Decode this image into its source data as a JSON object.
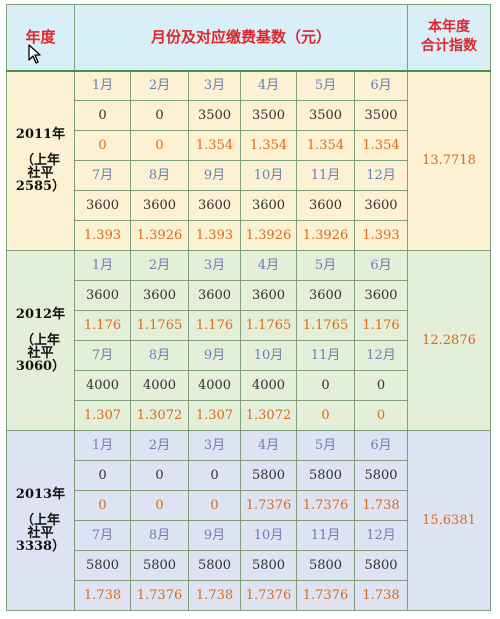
{
  "header": {
    "year_label": "年度",
    "middle_label": "月份及对应缴费基数（元）",
    "total_label_line1": "本年度",
    "total_label_line2": "合计指数"
  },
  "groups": [
    {
      "year": "2011年",
      "note_l1": "（上年",
      "note_l2": "社平",
      "note_l3": "2585）",
      "total": "13.7718",
      "rows": [
        {
          "kind": "month",
          "cells": [
            "1月",
            "2月",
            "3月",
            "4月",
            "5月",
            "6月"
          ]
        },
        {
          "kind": "base",
          "cells": [
            "0",
            "0",
            "3500",
            "3500",
            "3500",
            "3500"
          ]
        },
        {
          "kind": "idx",
          "cells": [
            "0",
            "0",
            "1.354",
            "1.354",
            "1.354",
            "1.354"
          ]
        },
        {
          "kind": "month",
          "cells": [
            "7月",
            "8月",
            "9月",
            "10月",
            "11月",
            "12月"
          ]
        },
        {
          "kind": "base",
          "cells": [
            "3600",
            "3600",
            "3600",
            "3600",
            "3600",
            "3600"
          ]
        },
        {
          "kind": "idx",
          "cells": [
            "1.393",
            "1.3926",
            "1.393",
            "1.3926",
            "1.3926",
            "1.393"
          ]
        }
      ]
    },
    {
      "year": "2012年",
      "note_l1": "（上年",
      "note_l2": "社平",
      "note_l3": "3060）",
      "total": "12.2876",
      "rows": [
        {
          "kind": "month",
          "cells": [
            "1月",
            "2月",
            "3月",
            "4月",
            "5月",
            "6月"
          ]
        },
        {
          "kind": "base",
          "cells": [
            "3600",
            "3600",
            "3600",
            "3600",
            "3600",
            "3600"
          ]
        },
        {
          "kind": "idx",
          "cells": [
            "1.176",
            "1.1765",
            "1.176",
            "1.1765",
            "1.1765",
            "1.176"
          ]
        },
        {
          "kind": "month",
          "cells": [
            "7月",
            "8月",
            "9月",
            "10月",
            "11月",
            "12月"
          ]
        },
        {
          "kind": "base",
          "cells": [
            "4000",
            "4000",
            "4000",
            "4000",
            "0",
            "0"
          ]
        },
        {
          "kind": "idx",
          "cells": [
            "1.307",
            "1.3072",
            "1.307",
            "1.3072",
            "0",
            "0"
          ]
        }
      ]
    },
    {
      "year": "2013年",
      "note_l1": "（上年",
      "note_l2": "社平",
      "note_l3": "3338）",
      "total": "15.6381",
      "rows": [
        {
          "kind": "month",
          "cells": [
            "1月",
            "2月",
            "3月",
            "4月",
            "5月",
            "6月"
          ]
        },
        {
          "kind": "base",
          "cells": [
            "0",
            "0",
            "0",
            "5800",
            "5800",
            "5800"
          ]
        },
        {
          "kind": "idx",
          "cells": [
            "0",
            "0",
            "0",
            "1.7376",
            "1.7376",
            "1.738"
          ]
        },
        {
          "kind": "month",
          "cells": [
            "7月",
            "8月",
            "9月",
            "10月",
            "11月",
            "12月"
          ]
        },
        {
          "kind": "base",
          "cells": [
            "5800",
            "5800",
            "5800",
            "5800",
            "5800",
            "5800"
          ]
        },
        {
          "kind": "idx",
          "cells": [
            "1.738",
            "1.7376",
            "1.738",
            "1.7376",
            "1.7376",
            "1.738"
          ]
        }
      ]
    }
  ]
}
